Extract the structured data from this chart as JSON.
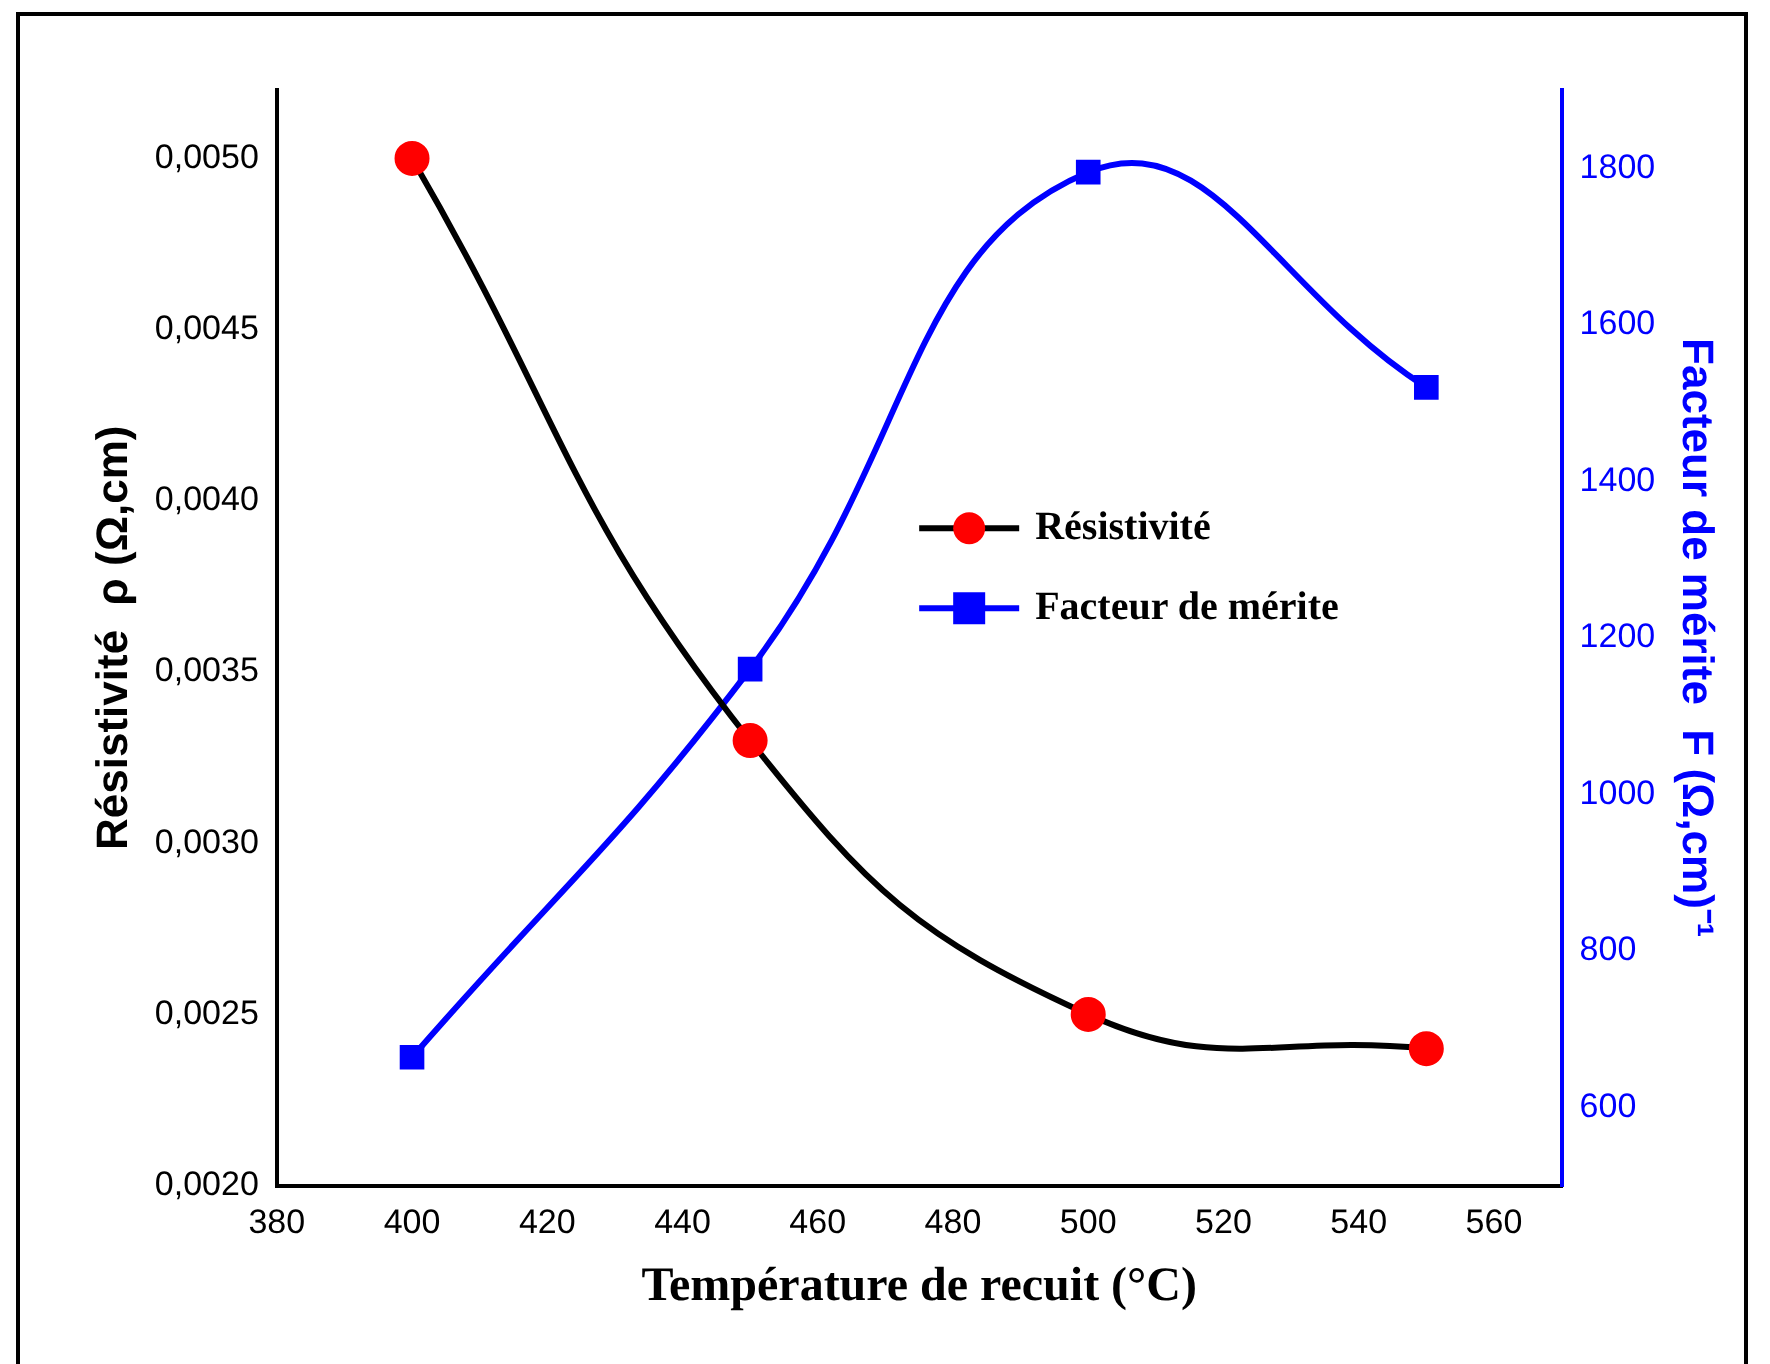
{
  "chart_data": {
    "type": "line",
    "xlabel": "Température de recuit (°C)",
    "ylabel": "Résistivité  ρ (Ω,cm)",
    "y2label": "Facteur de mérite  F (Ω,cm)⁻¹",
    "x": [
      400,
      450,
      500,
      550
    ],
    "series": [
      {
        "name": "Résistivité",
        "color": "#000000",
        "marker": "circle",
        "values": [
          0.005,
          0.0033,
          0.0025,
          0.0024
        ]
      },
      {
        "name": "Facteur de mérite",
        "color": "#0000ff",
        "marker": "square",
        "axis": "y2",
        "values": [
          664,
          1160,
          1795,
          1520
        ]
      }
    ],
    "xlim": [
      380,
      570
    ],
    "xticks": [
      380,
      400,
      420,
      440,
      460,
      480,
      500,
      520,
      540,
      560
    ],
    "ylim": [
      0.002,
      0.0052
    ],
    "yticks": [
      {
        "value": 0.002,
        "label": "0,0020"
      },
      {
        "value": 0.0025,
        "label": "0,0025"
      },
      {
        "value": 0.003,
        "label": "0,0030"
      },
      {
        "value": 0.0035,
        "label": "0,0035"
      },
      {
        "value": 0.004,
        "label": "0,0040"
      },
      {
        "value": 0.0045,
        "label": "0,0045"
      },
      {
        "value": 0.005,
        "label": "0,0050"
      }
    ],
    "y2lim": [
      500,
      1900
    ],
    "y2ticks": [
      600,
      800,
      1000,
      1200,
      1400,
      1600,
      1800
    ],
    "legend": "right",
    "grid": false,
    "line_style": "solid"
  }
}
